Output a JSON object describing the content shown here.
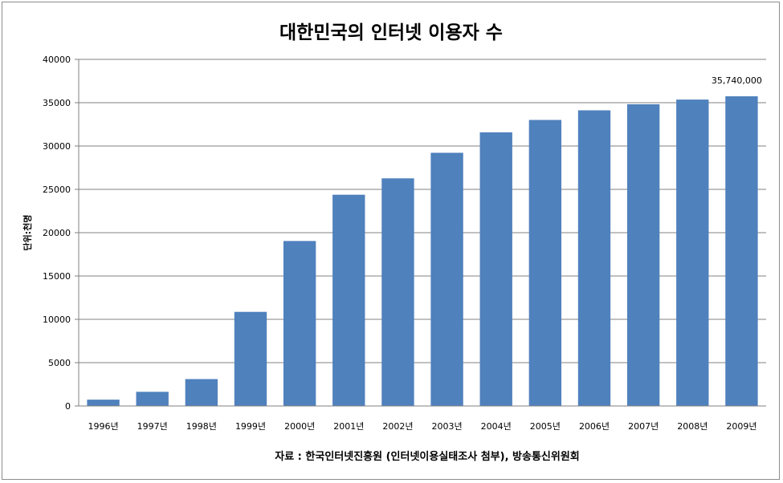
{
  "chart_data": {
    "type": "bar",
    "title": "대한민국의 인터넷 이용자 수",
    "ylabel": "단위:천명",
    "xlabel": "",
    "categories": [
      "1996년",
      "1997년",
      "1998년",
      "1999년",
      "2000년",
      "2001년",
      "2002년",
      "2003년",
      "2004년",
      "2005년",
      "2006년",
      "2007년",
      "2008년",
      "2009년"
    ],
    "values": [
      731,
      1634,
      3103,
      10860,
      19040,
      24380,
      26270,
      29220,
      31580,
      33010,
      34120,
      34820,
      35360,
      35740
    ],
    "ylim": [
      0,
      40000
    ],
    "yticks": [
      "0",
      "5000",
      "10000",
      "15000",
      "20000",
      "25000",
      "30000",
      "35000",
      "40000"
    ],
    "grid": true,
    "legend": "none",
    "bar_color": "#4f81bd",
    "annotations": [
      {
        "category": "2009년",
        "text": "35,740,000"
      }
    ],
    "source": "자료 : 한국인터넷진흥원  (인터넷이용실태조사 첨부), 방송통신위원회"
  }
}
